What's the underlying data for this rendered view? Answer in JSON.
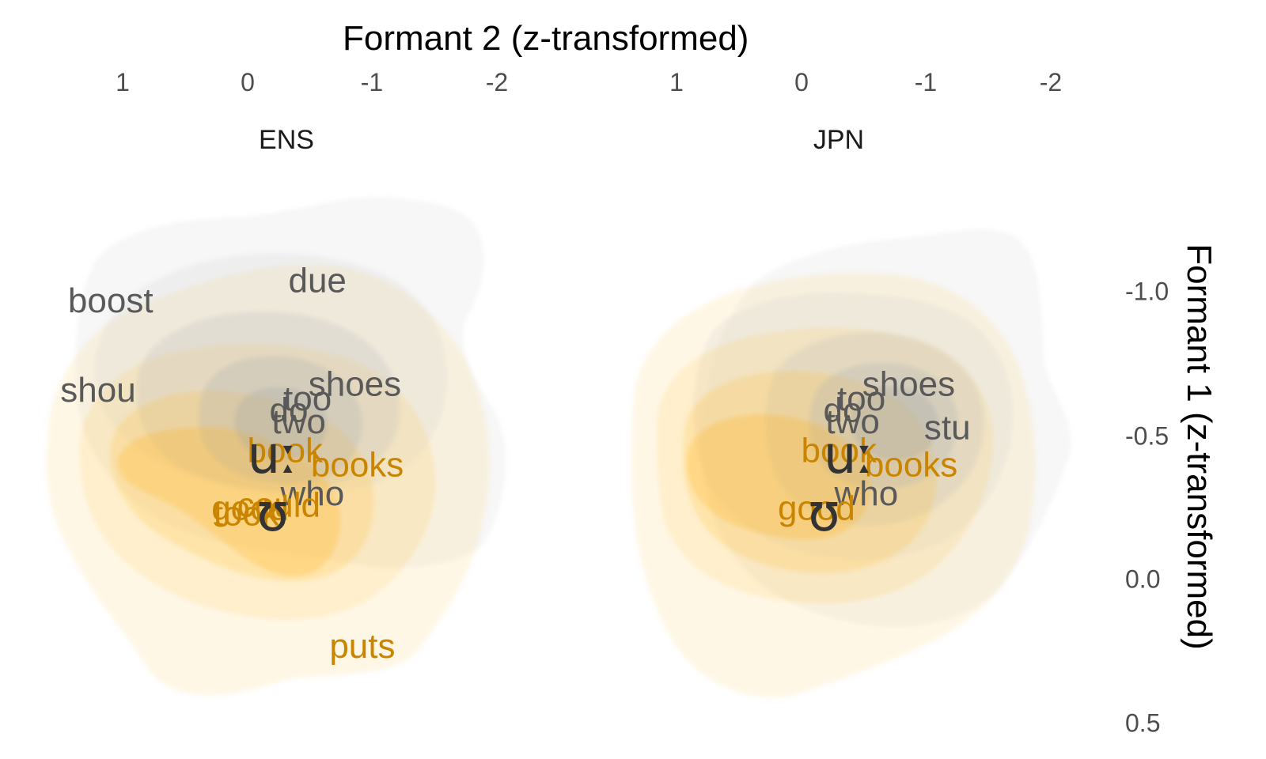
{
  "axes": {
    "x_title": "Formant 2 (z-transformed)",
    "y_title": "Formant 1 (z-transformed)",
    "x_ticks": [
      "1",
      "0",
      "-1",
      "-2"
    ],
    "y_ticks": [
      "-1.0",
      "-0.5",
      "0.0",
      "0.5"
    ]
  },
  "colors": {
    "grey_fill": "#bdbdbd",
    "orange_fill": "#ffb000",
    "grey_label": "#595959",
    "orange_label": "#c98500",
    "symbol": "#333333"
  },
  "chart_data": {
    "type": "scatter",
    "x_axis": {
      "label": "Formant 2 (z-transformed)",
      "reversed": true,
      "position": "top",
      "ticks": [
        1,
        0,
        -1,
        -2
      ]
    },
    "y_axis": {
      "label": "Formant 1 (z-transformed)",
      "reversed": true,
      "position": "right",
      "ticks": [
        -1.0,
        -0.5,
        0.0,
        0.5
      ]
    },
    "grid": false,
    "panels": [
      {
        "name": "ENS",
        "symbols": [
          {
            "text": "uː",
            "f2": -0.2,
            "f1": -0.42,
            "vowel": "uː"
          },
          {
            "text": "ʊ",
            "f2": -0.2,
            "f1": -0.22,
            "vowel": "ʊ"
          }
        ],
        "words": [
          {
            "text": "boost",
            "f2": 1.1,
            "f1": -0.96,
            "vowel": "uː"
          },
          {
            "text": "due",
            "f2": -0.56,
            "f1": -1.03,
            "vowel": "uː"
          },
          {
            "text": "shou",
            "f2": 1.2,
            "f1": -0.65,
            "vowel": "uː"
          },
          {
            "text": "shoes",
            "f2": -0.86,
            "f1": -0.67,
            "vowel": "uː"
          },
          {
            "text": "too",
            "f2": -0.48,
            "f1": -0.62,
            "vowel": "uː"
          },
          {
            "text": "do",
            "f2": -0.33,
            "f1": -0.58,
            "vowel": "uː"
          },
          {
            "text": "two",
            "f2": -0.41,
            "f1": -0.54,
            "vowel": "uː"
          },
          {
            "text": "book",
            "f2": -0.3,
            "f1": -0.44,
            "vowel": "ʊ"
          },
          {
            "text": "books",
            "f2": -0.88,
            "f1": -0.39,
            "vowel": "ʊ"
          },
          {
            "text": "who",
            "f2": -0.52,
            "f1": -0.29,
            "vowel": "uː"
          },
          {
            "text": "good",
            "f2": -0.02,
            "f1": -0.24,
            "vowel": "ʊ"
          },
          {
            "text": "could",
            "f2": -0.25,
            "f1": -0.25,
            "vowel": "ʊ"
          },
          {
            "text": "took",
            "f2": 0.01,
            "f1": -0.22,
            "vowel": "ʊ"
          },
          {
            "text": "puts",
            "f2": -0.92,
            "f1": 0.24,
            "vowel": "ʊ"
          }
        ]
      },
      {
        "name": "JPN",
        "symbols": [
          {
            "text": "uː",
            "f2": -0.38,
            "f1": -0.42,
            "vowel": "uː"
          },
          {
            "text": "ʊ",
            "f2": -0.18,
            "f1": -0.22,
            "vowel": "ʊ"
          }
        ],
        "words": [
          {
            "text": "shoes",
            "f2": -0.86,
            "f1": -0.67,
            "vowel": "uː"
          },
          {
            "text": "too",
            "f2": -0.48,
            "f1": -0.62,
            "vowel": "uː"
          },
          {
            "text": "do",
            "f2": -0.33,
            "f1": -0.58,
            "vowel": "uː"
          },
          {
            "text": "two",
            "f2": -0.41,
            "f1": -0.54,
            "vowel": "uː"
          },
          {
            "text": "stu",
            "f2": -1.17,
            "f1": -0.52,
            "vowel": "uː"
          },
          {
            "text": "book",
            "f2": -0.3,
            "f1": -0.44,
            "vowel": "ʊ"
          },
          {
            "text": "books",
            "f2": -0.88,
            "f1": -0.39,
            "vowel": "ʊ"
          },
          {
            "text": "who",
            "f2": -0.52,
            "f1": -0.29,
            "vowel": "uː"
          },
          {
            "text": "good",
            "f2": -0.12,
            "f1": -0.24,
            "vowel": "ʊ"
          }
        ]
      }
    ]
  }
}
